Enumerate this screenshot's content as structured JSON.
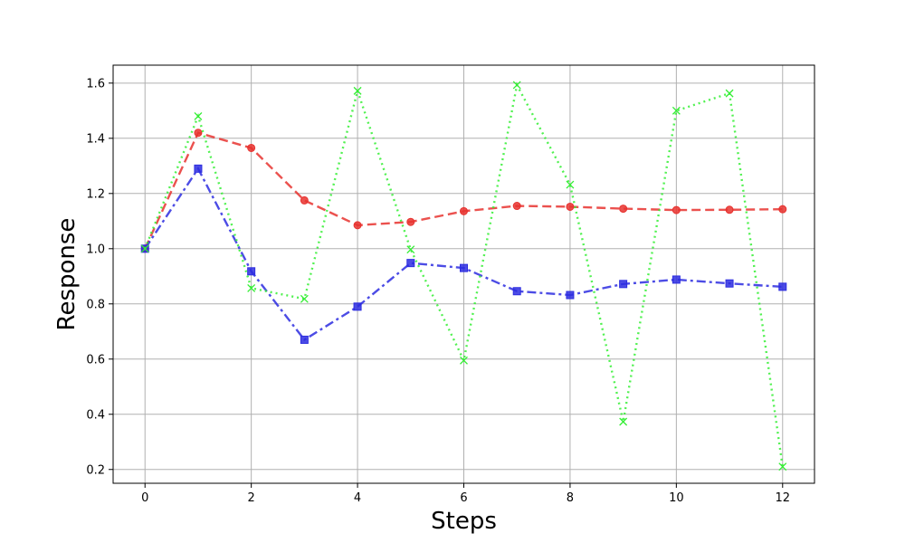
{
  "chart_data": {
    "type": "line",
    "title": "",
    "xlabel": "Steps",
    "ylabel": "Response",
    "xlim": [
      -0.6,
      12.6
    ],
    "ylim": [
      0.15,
      1.665
    ],
    "xticks": [
      0,
      2,
      4,
      6,
      8,
      10,
      12
    ],
    "yticks": [
      0.2,
      0.4,
      0.6,
      0.8,
      1.0,
      1.2,
      1.4,
      1.6
    ],
    "ytick_labels": [
      "0.2",
      "0.4",
      "0.6",
      "0.8",
      "1.0",
      "1.2",
      "1.4",
      "1.6"
    ],
    "grid": true,
    "x": [
      0,
      1,
      2,
      3,
      4,
      5,
      6,
      7,
      8,
      9,
      10,
      11,
      12
    ],
    "series": [
      {
        "color": "#e8322f",
        "dash": "dashed",
        "marker": "circle",
        "values": [
          1.0,
          1.42,
          1.365,
          1.175,
          1.085,
          1.097,
          1.136,
          1.155,
          1.152,
          1.145,
          1.14,
          1.141,
          1.143
        ]
      },
      {
        "color": "#2d2de0",
        "dash": "dashdot",
        "marker": "square",
        "values": [
          1.0,
          1.29,
          0.918,
          0.67,
          0.79,
          0.948,
          0.93,
          0.846,
          0.832,
          0.872,
          0.888,
          0.874,
          0.862
        ]
      },
      {
        "color": "#33ee33",
        "dash": "dotted",
        "marker": "x",
        "values": [
          1.0,
          1.48,
          0.857,
          0.818,
          1.572,
          0.997,
          0.595,
          1.593,
          1.232,
          0.373,
          1.5,
          1.563,
          0.21
        ]
      }
    ]
  }
}
